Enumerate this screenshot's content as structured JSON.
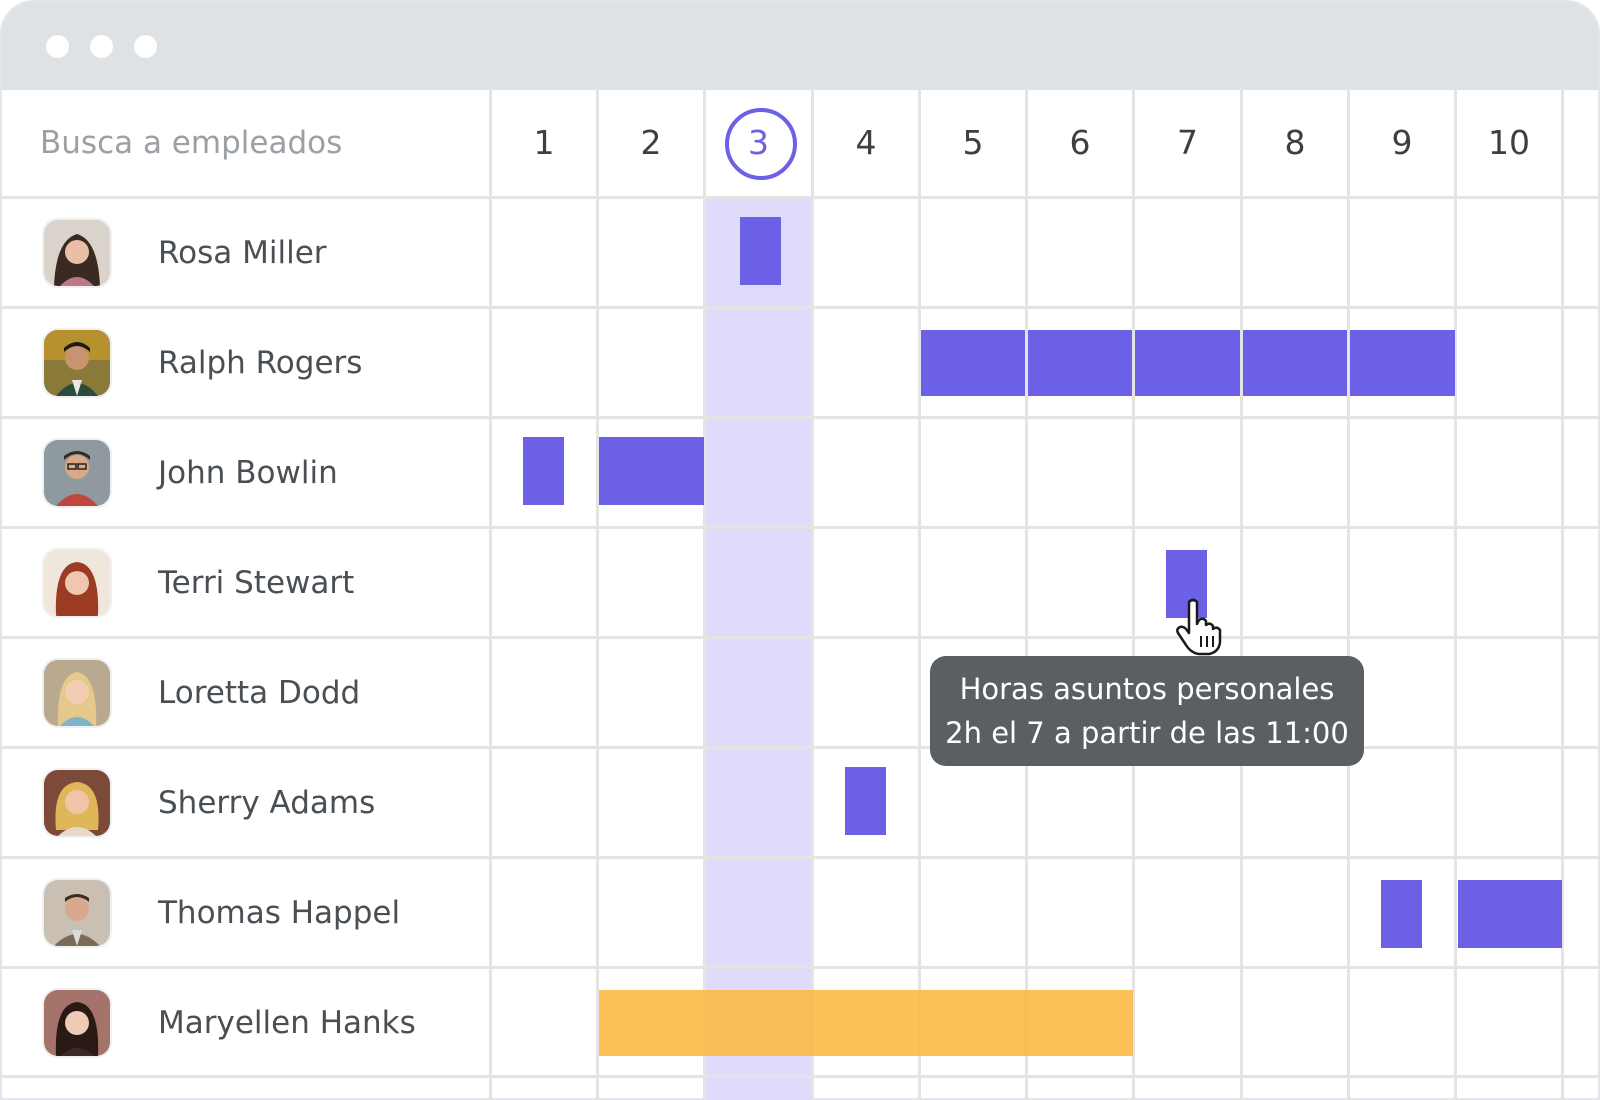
{
  "window": {
    "controls": [
      "close",
      "minimize",
      "maximize"
    ]
  },
  "search": {
    "placeholder": "Busca a empleados"
  },
  "calendar": {
    "days": [
      "1",
      "2",
      "3",
      "4",
      "5",
      "6",
      "7",
      "8",
      "9",
      "10"
    ],
    "today": "3",
    "colors": {
      "absence": "#6b60e6",
      "vacation": "#fdb742",
      "today_column": "#dedbfb"
    }
  },
  "employees": [
    {
      "name": "Rosa Miller",
      "avatar": "avatar-photo"
    },
    {
      "name": "Ralph Rogers",
      "avatar": "avatar-photo"
    },
    {
      "name": "John Bowlin",
      "avatar": "avatar-photo"
    },
    {
      "name": "Terri Stewart",
      "avatar": "avatar-photo"
    },
    {
      "name": "Loretta Dodd",
      "avatar": "avatar-photo"
    },
    {
      "name": "Sherry Adams",
      "avatar": "avatar-photo"
    },
    {
      "name": "Thomas Happel",
      "avatar": "avatar-photo"
    },
    {
      "name": "Maryellen Hanks",
      "avatar": "avatar-photo"
    }
  ],
  "tooltip": {
    "line1": "Horas asuntos personales",
    "line2": "2h el 7 a partir de las 11:00"
  },
  "cursor": {
    "icon": "hand-pointer-icon"
  }
}
